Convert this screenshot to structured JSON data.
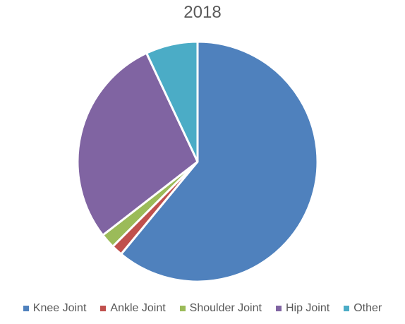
{
  "chart_data": {
    "type": "pie",
    "title": "2018",
    "categories": [
      "Knee Joint",
      "Ankle Joint",
      "Shoulder Joint",
      "Hip Joint",
      "Other"
    ],
    "values": [
      61,
      1.5,
      2,
      28.5,
      7
    ],
    "colors": [
      "#4F81BD",
      "#C0504D",
      "#9BBB59",
      "#8064A2",
      "#4BACC6"
    ],
    "legend_position": "bottom",
    "start_angle_deg": 0,
    "direction": "clockwise"
  }
}
